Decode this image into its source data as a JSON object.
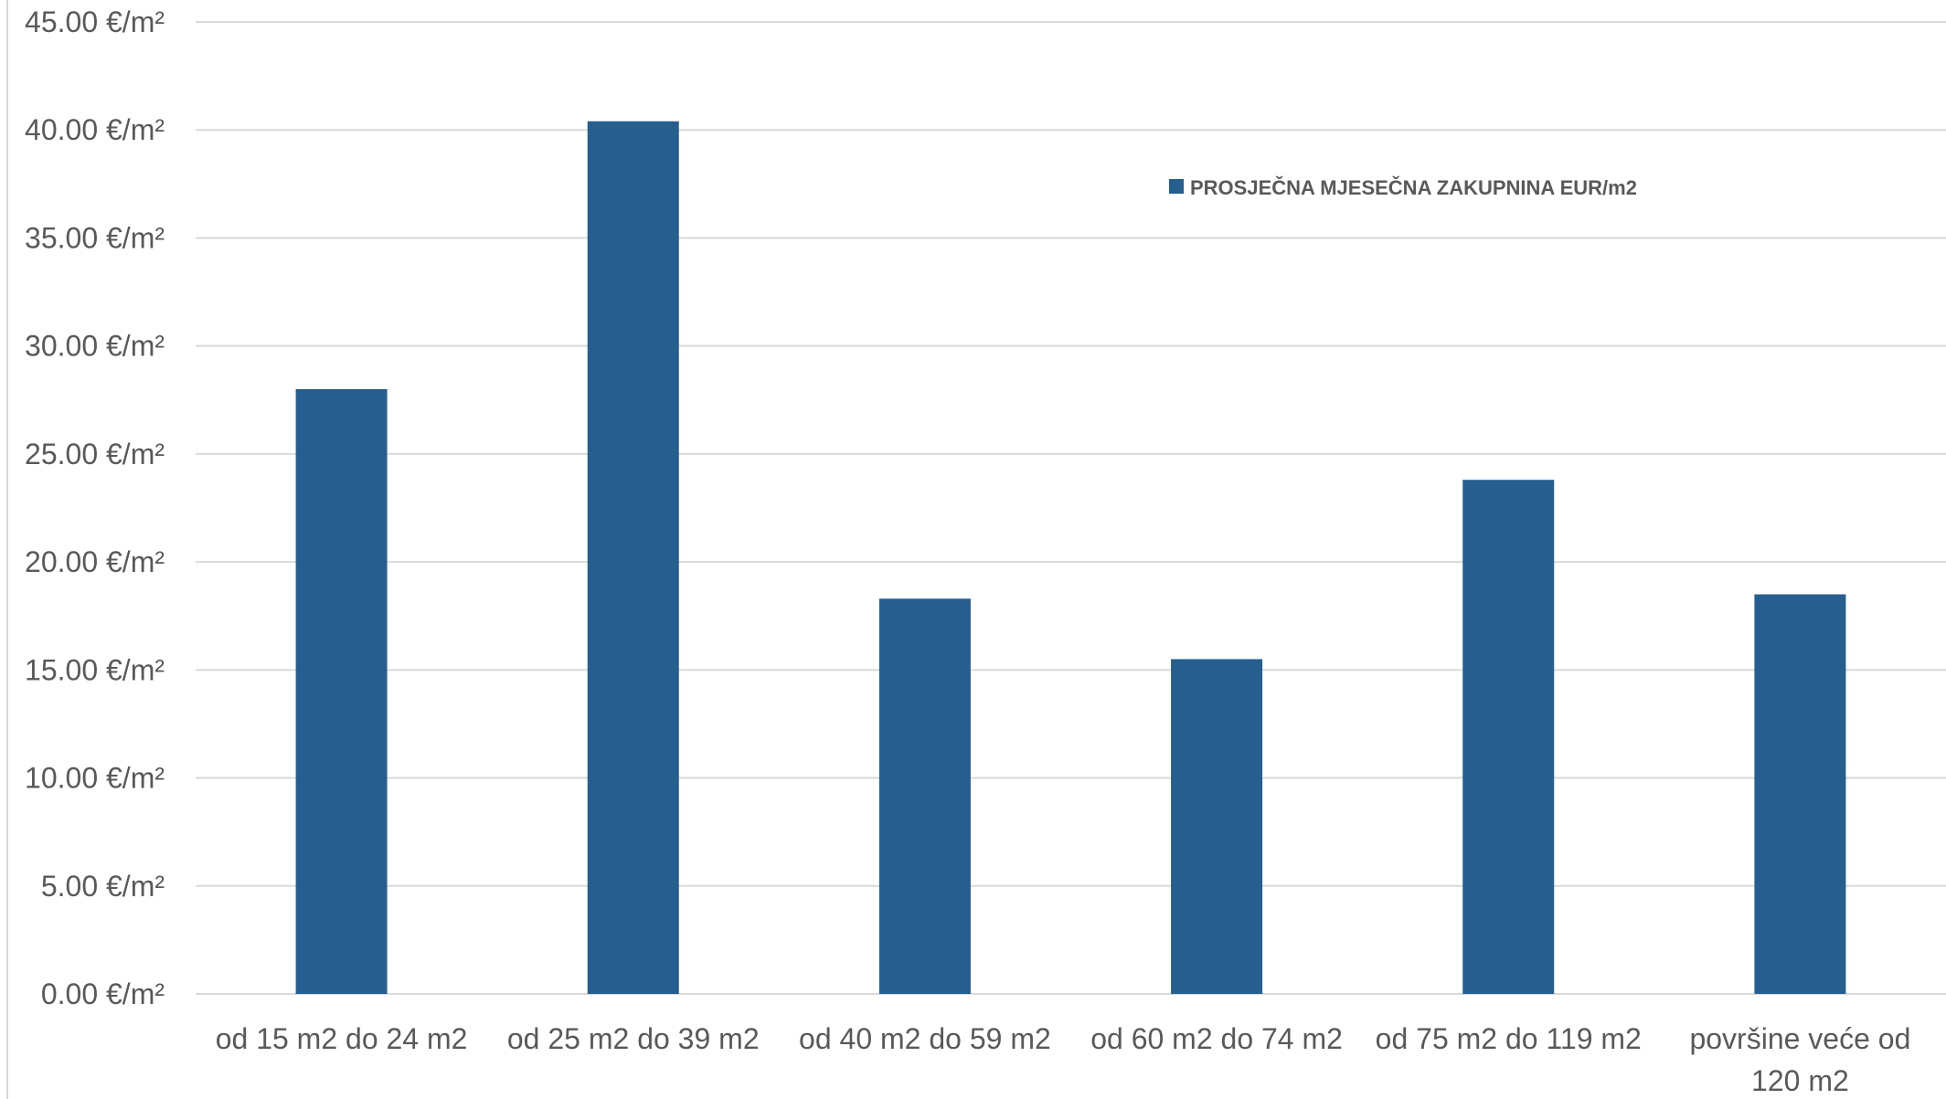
{
  "chart_data": {
    "type": "bar",
    "categories": [
      [
        "od 15 m2 do 24 m2"
      ],
      [
        "od 25 m2 do 39 m2"
      ],
      [
        "od 40 m2 do 59 m2"
      ],
      [
        "od 60 m2 do 74 m2"
      ],
      [
        "od 75 m2 do 119 m2"
      ],
      [
        "površine veće od",
        "120 m2"
      ]
    ],
    "series": [
      {
        "name": "PROSJEČNA MJESEČNA ZAKUPNINA EUR/m2",
        "values": [
          28.0,
          40.4,
          18.3,
          15.5,
          23.8,
          18.5
        ],
        "color": "#255E8F"
      }
    ],
    "ylim": [
      0,
      45
    ],
    "ytick_step": 5,
    "ytick_labels": [
      "0.00 €/m²",
      "5.00 €/m²",
      "10.00 €/m²",
      "15.00 €/m²",
      "20.00 €/m²",
      "25.00 €/m²",
      "30.00 €/m²",
      "35.00 €/m²",
      "40.00 €/m²",
      "45.00 €/m²"
    ],
    "grid": true,
    "legend_position": "top-right",
    "gridline_color": "#D9D9D9",
    "axis_line_color": "#D9D9D9"
  }
}
